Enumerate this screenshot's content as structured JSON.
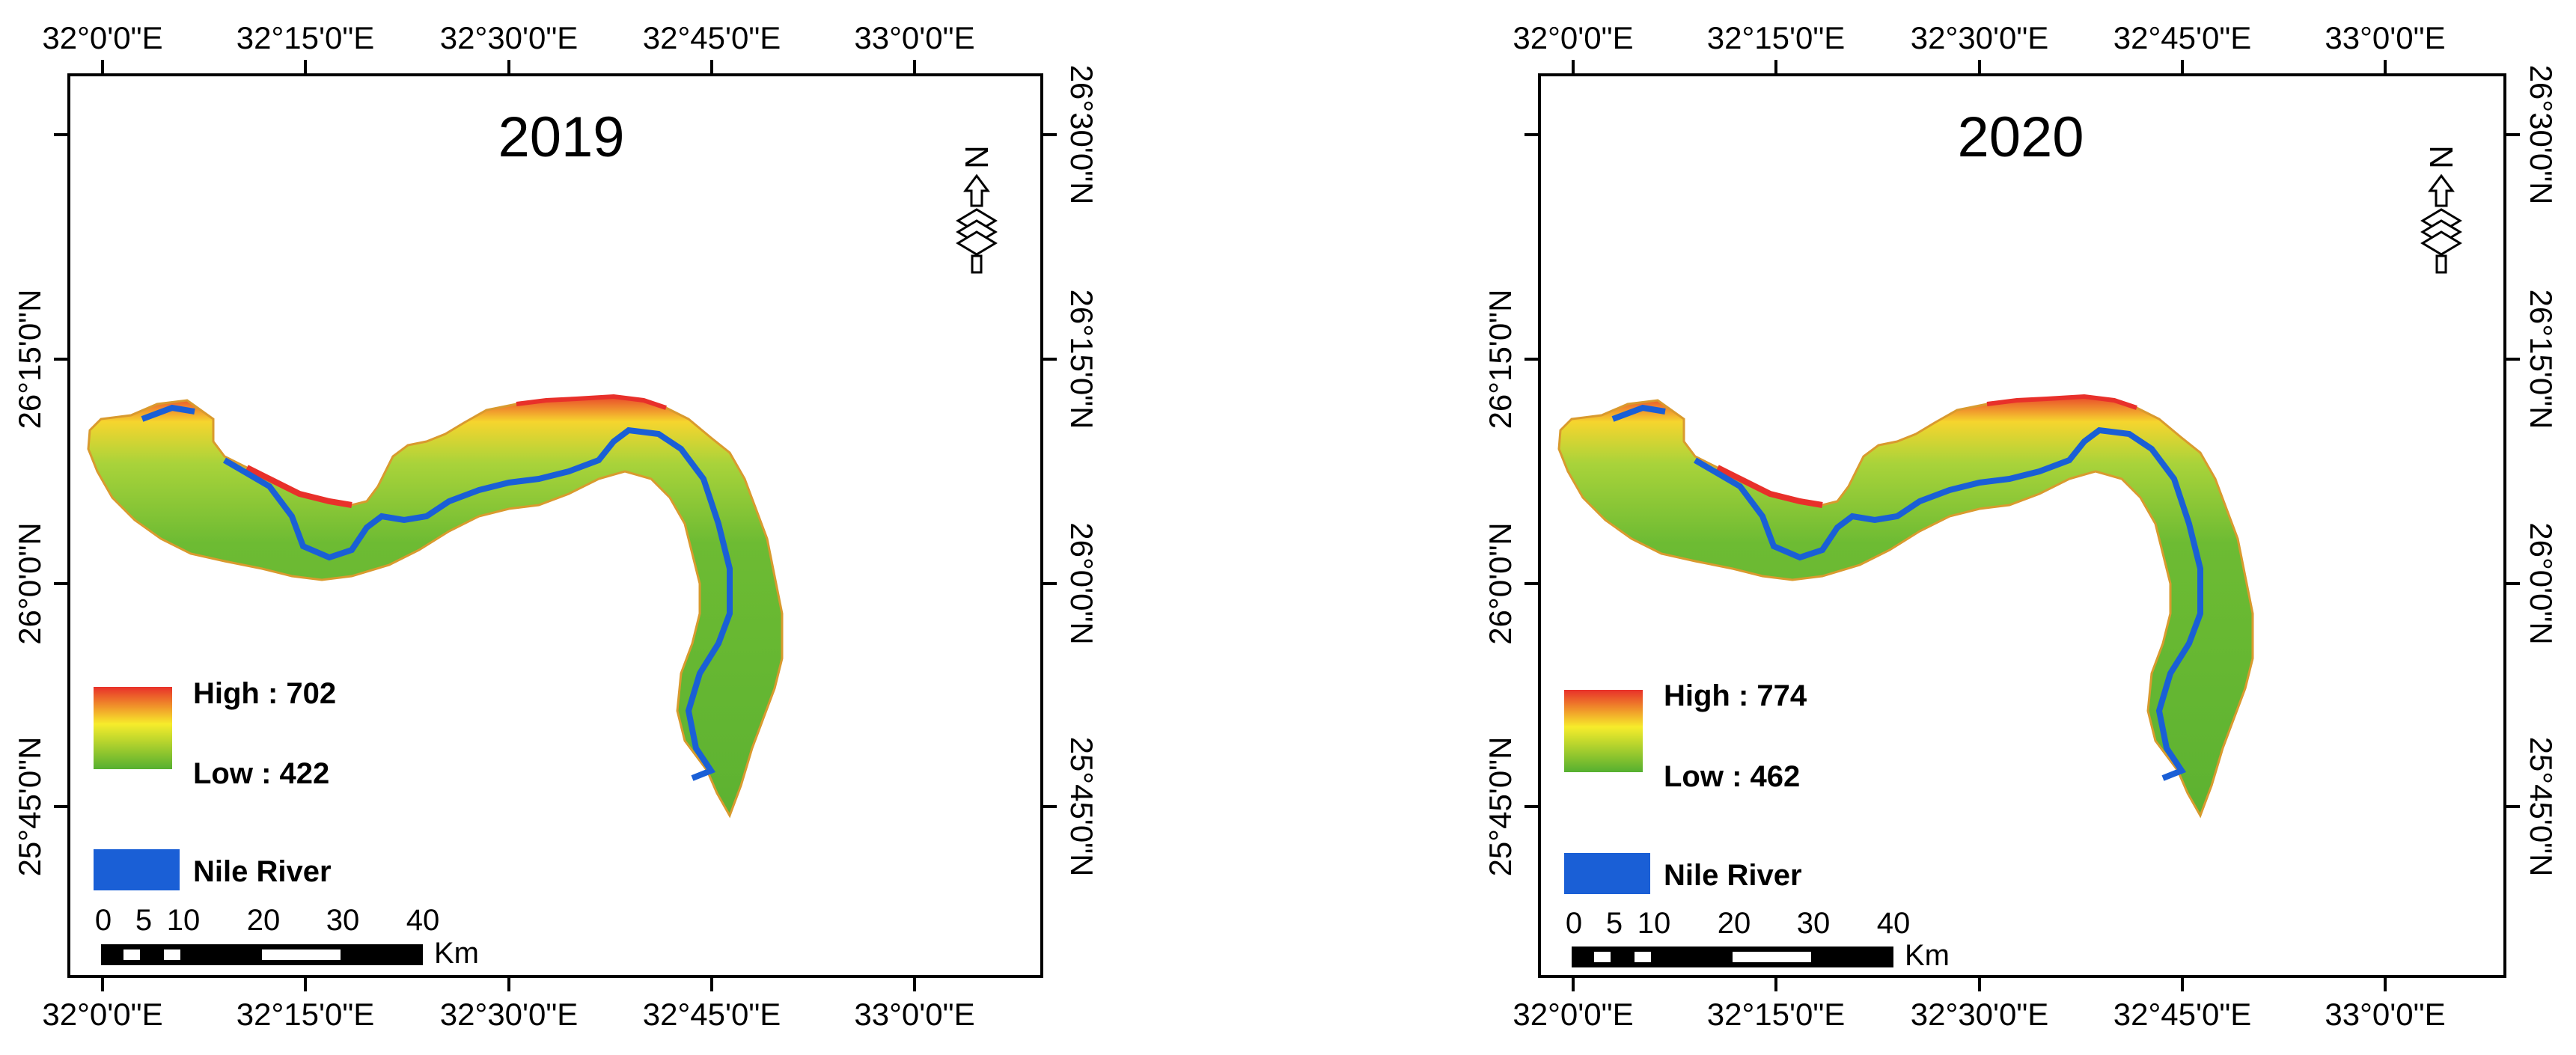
{
  "maps": [
    {
      "year": "2019",
      "legend": {
        "high": "High : 702",
        "low": "Low : 422",
        "river": "Nile River"
      }
    },
    {
      "year": "2020",
      "legend": {
        "high": "High : 774",
        "low": "Low : 462",
        "river": "Nile River"
      }
    }
  ],
  "longitude_labels": [
    "32°0'0\"E",
    "32°15'0\"E",
    "32°30'0\"E",
    "32°45'0\"E",
    "33°0'0\"E"
  ],
  "latitude_labels": [
    "26°30'0\"N",
    "26°15'0\"N",
    "26°0'0\"N",
    "25°45'0\"N"
  ],
  "scale_bar": {
    "ticks": [
      "0",
      "5",
      "10",
      "20",
      "30",
      "40"
    ],
    "unit": "Km"
  },
  "north_arrow": {
    "label": "N",
    "icon": "north-arrow-icon"
  },
  "colors": {
    "high": "#e8302a",
    "mid": "#f7ec2b",
    "low": "#55b030",
    "river": "#1a5fd6",
    "frame": "#000000"
  }
}
